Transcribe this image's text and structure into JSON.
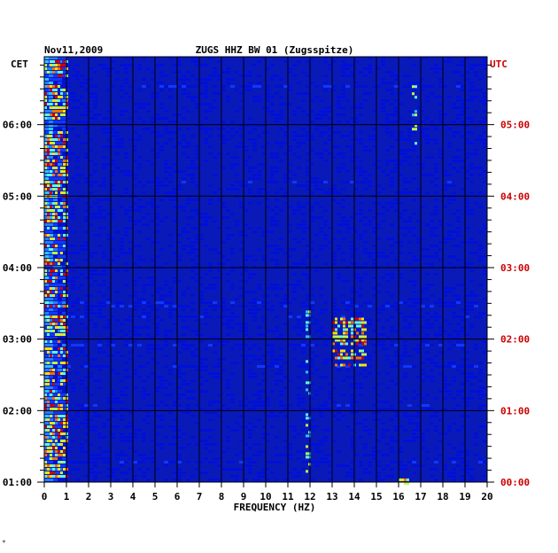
{
  "header": {
    "date": "Nov11,2009",
    "station": "ZUGS HHZ BW 01 (Zugsspitze)"
  },
  "footer_mark": "*",
  "chart_data": {
    "type": "heatmap",
    "title": "ZUGS HHZ BW 01 (Zugsspitze)",
    "subtitle": "Nov11,2009",
    "xlabel": "FREQUENCY (HZ)",
    "xlim": [
      0,
      20
    ],
    "x_ticks": [
      "0",
      "1",
      "2",
      "3",
      "4",
      "5",
      "6",
      "7",
      "8",
      "9",
      "10",
      "11",
      "12",
      "13",
      "14",
      "15",
      "16",
      "17",
      "18",
      "19",
      "20"
    ],
    "left_axis": {
      "label": "CET",
      "ticks": [
        "06:00",
        "05:00",
        "04:00",
        "03:00",
        "02:00",
        "01:00"
      ],
      "color": "#000000"
    },
    "right_axis": {
      "label": "UTC",
      "ticks": [
        "05:00",
        "04:00",
        "03:00",
        "02:00",
        "01:00",
        "00:00"
      ],
      "color": "#cc0000"
    },
    "time_range_utc_hours": [
      0,
      5.95
    ],
    "colormap": [
      "#0000a0",
      "#0010d8",
      "#1038ff",
      "#2080ff",
      "#30c0ff",
      "#60ffe0",
      "#c0ff40",
      "#ffe000",
      "#ff7000",
      "#d00000"
    ],
    "grid_color": "#000000",
    "background_color": "#0a1ab8",
    "features": [
      {
        "description": "strong low-frequency band",
        "freq_range_hz": [
          0,
          1.0
        ],
        "intensity": "high",
        "time_utc": "all"
      },
      {
        "description": "bright tremor patches",
        "freq_range_hz": [
          13.0,
          14.5
        ],
        "time_utc_hours": [
          1.6,
          2.3
        ],
        "intensity": "high"
      },
      {
        "description": "vertical streak",
        "freq_range_hz": [
          11.8,
          12.0
        ],
        "time_utc_hours": [
          0.1,
          2.4
        ],
        "intensity": "medium"
      },
      {
        "description": "spot",
        "freq_range_hz": [
          16.0,
          16.4
        ],
        "time_utc_hours": [
          0.0,
          0.1
        ],
        "intensity": "high"
      },
      {
        "description": "vertical streak",
        "freq_range_hz": [
          16.6,
          16.8
        ],
        "time_utc_hours": [
          4.7,
          5.6
        ],
        "intensity": "medium"
      }
    ]
  }
}
